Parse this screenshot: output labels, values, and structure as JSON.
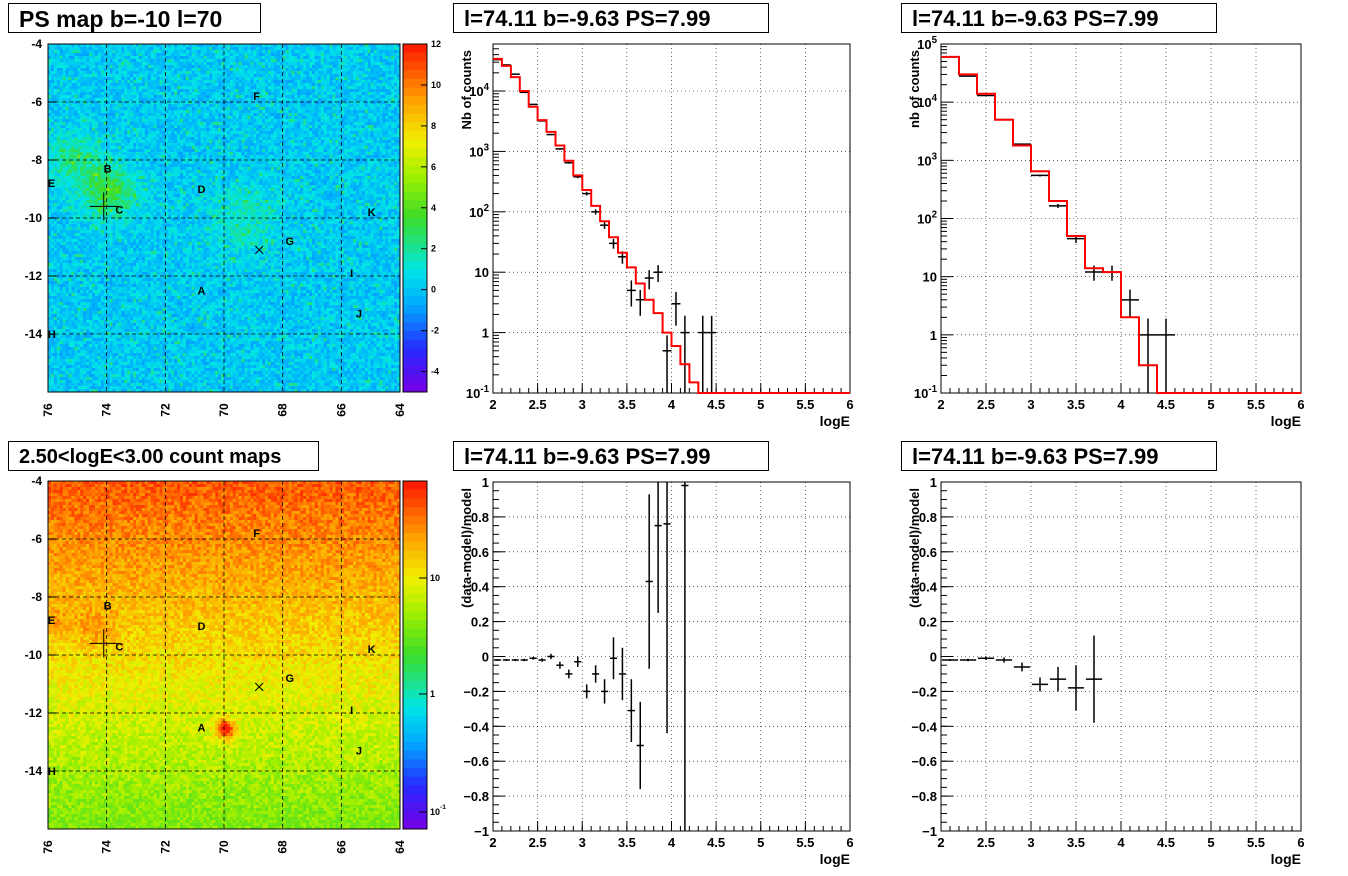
{
  "panels": {
    "p1_title": "PS map b=-10 l=70",
    "p2_title": "l=74.11 b=-9.63 PS=7.99",
    "p3_title": "l=74.11 b=-9.63 PS=7.99",
    "p4_title": "2.50<logE<3.00 count maps",
    "p5_title": "l=74.11 b=-9.63 PS=7.99",
    "p6_title": "l=74.11 b=-9.63 PS=7.99"
  },
  "colors": {
    "data": "#000000",
    "model": "#ff0000",
    "grid": "#000000"
  },
  "chart_data": [
    {
      "type": "heatmap",
      "title": "PS map b=-10 l=70",
      "xlim": [
        76,
        64
      ],
      "ylim": [
        -16,
        -4
      ],
      "xticks": [
        "76",
        "74",
        "72",
        "70",
        "68",
        "66",
        "64"
      ],
      "yticks": [
        "-4",
        "-6",
        "-8",
        "-10",
        "-12",
        "-14"
      ],
      "colorbar_ticks": [
        "12",
        "10",
        "8",
        "6",
        "4",
        "2",
        "0",
        "-2",
        "-4"
      ],
      "zlim": [
        -5,
        12
      ],
      "sources": [
        {
          "label": "A",
          "l": 70.8,
          "b": -12.5
        },
        {
          "label": "B",
          "l": 74.0,
          "b": -8.3
        },
        {
          "label": "C",
          "l": 73.6,
          "b": -9.7
        },
        {
          "label": "D",
          "l": 70.8,
          "b": -9.0
        },
        {
          "label": "E",
          "l": 75.9,
          "b": -8.8
        },
        {
          "label": "F",
          "l": 68.9,
          "b": -5.8
        },
        {
          "label": "G",
          "l": 67.8,
          "b": -10.8
        },
        {
          "label": "H",
          "l": 75.9,
          "b": -14.0
        },
        {
          "label": "I",
          "l": 65.6,
          "b": -11.9
        },
        {
          "label": "J",
          "l": 65.4,
          "b": -13.3
        },
        {
          "label": "K",
          "l": 65.0,
          "b": -9.8
        }
      ],
      "markers": [
        {
          "type": "plus",
          "l": 74.1,
          "b": -9.6
        },
        {
          "type": "x",
          "l": 68.8,
          "b": -11.1
        }
      ]
    },
    {
      "type": "line",
      "title": "l=74.11 b=-9.63 PS=7.99",
      "xlabel": "logE",
      "ylabel": "Nb of counts",
      "xlim": [
        2,
        6
      ],
      "ylim": [
        0.1,
        60000
      ],
      "yscale": "log",
      "grid": true,
      "xticks": [
        "2",
        "2.5",
        "3",
        "3.5",
        "4",
        "4.5",
        "5",
        "5.5",
        "6"
      ],
      "yticks": [
        "10^-1",
        "1",
        "10",
        "10^2",
        "10^3",
        "10^4"
      ],
      "series": [
        {
          "role": "model",
          "step_edges": [
            2,
            2.1,
            2.2,
            2.3,
            2.4,
            2.5,
            2.6,
            2.7,
            2.8,
            2.9,
            3.0,
            3.1,
            3.2,
            3.3,
            3.4,
            3.5,
            3.6,
            3.7,
            3.8,
            3.9,
            4.0,
            4.1,
            4.2,
            4.3,
            4.4,
            6.0
          ],
          "values": [
            34000,
            26000,
            17000,
            10000,
            5500,
            3300,
            2100,
            1250,
            700,
            400,
            230,
            125,
            70,
            38,
            21,
            12,
            6.5,
            3.5,
            2.1,
            1.0,
            0.6,
            0.3,
            0.15,
            0.1,
            0.1
          ]
        },
        {
          "role": "data",
          "x": [
            2.05,
            2.15,
            2.25,
            2.35,
            2.45,
            2.55,
            2.65,
            2.75,
            2.85,
            2.95,
            3.05,
            3.15,
            3.25,
            3.35,
            3.45,
            3.55,
            3.65,
            3.75,
            3.85,
            3.95,
            4.05,
            4.15,
            4.25,
            4.35,
            4.45
          ],
          "values": [
            33000,
            27000,
            19000,
            9500,
            6000,
            3200,
            1900,
            1100,
            650,
            380,
            200,
            100,
            60,
            30,
            18,
            5,
            3.5,
            8,
            10,
            0.5,
            3,
            1,
            0.1,
            1,
            1
          ],
          "yerr_lo": [
            180,
            160,
            130,
            95,
            77,
            56,
            43,
            33,
            25,
            19,
            14,
            10,
            7.7,
            5.5,
            4.2,
            2.3,
            1.6,
            2.8,
            3.1,
            0.4,
            1.7,
            0.9,
            0.05,
            0.9,
            0.9
          ],
          "yerr_hi": [
            180,
            160,
            130,
            95,
            77,
            56,
            43,
            33,
            25,
            19,
            14,
            10,
            7.7,
            5.5,
            4.2,
            2.3,
            1.6,
            2.8,
            3.1,
            0.4,
            1.7,
            0.9,
            0.05,
            0.9,
            0.9
          ]
        }
      ]
    },
    {
      "type": "line",
      "title": "l=74.11 b=-9.63 PS=7.99",
      "xlabel": "logE",
      "ylabel": "nb of counts",
      "xlim": [
        2,
        6
      ],
      "ylim": [
        0.1,
        100000
      ],
      "yscale": "log",
      "grid": true,
      "xticks": [
        "2",
        "2.5",
        "3",
        "3.5",
        "4",
        "4.5",
        "5",
        "5.5",
        "6"
      ],
      "yticks": [
        "10^-1",
        "1",
        "10",
        "10^2",
        "10^3",
        "10^4",
        "10^5"
      ],
      "series": [
        {
          "role": "model",
          "step_edges": [
            2,
            2.2,
            2.4,
            2.6,
            2.8,
            3.0,
            3.2,
            3.4,
            3.6,
            3.8,
            4.0,
            4.2,
            4.4,
            4.6,
            6.0
          ],
          "values": [
            60000,
            30000,
            14000,
            5000,
            1800,
            650,
            200,
            50,
            14,
            12,
            2,
            0.3,
            0.1,
            0.1
          ]
        },
        {
          "role": "data",
          "x": [
            2.1,
            2.3,
            2.5,
            2.7,
            2.9,
            3.1,
            3.3,
            3.5,
            3.7,
            3.9,
            4.1,
            4.3,
            4.5
          ],
          "values": [
            60000,
            28000,
            13000,
            5000,
            1900,
            550,
            165,
            45,
            12,
            12,
            4,
            1,
            1
          ],
          "yerr_lo": [
            240,
            170,
            110,
            70,
            44,
            23,
            13,
            7,
            3.5,
            3.5,
            2,
            0.9,
            0.9
          ],
          "yerr_hi": [
            240,
            170,
            110,
            70,
            44,
            23,
            13,
            7,
            3.5,
            3.5,
            2,
            0.9,
            0.9
          ]
        }
      ]
    },
    {
      "type": "heatmap",
      "title": "2.50<logE<3.00 count maps",
      "xlim": [
        76,
        64
      ],
      "ylim": [
        -16,
        -4
      ],
      "xticks": [
        "76",
        "74",
        "72",
        "70",
        "68",
        "66",
        "64"
      ],
      "yticks": [
        "-4",
        "-6",
        "-8",
        "-10",
        "-12",
        "-14"
      ],
      "colorbar_ticks": [
        "10",
        "1",
        "10^-1"
      ],
      "zscale": "log"
    },
    {
      "type": "scatter",
      "title": "l=74.11 b=-9.63 PS=7.99",
      "xlabel": "logE",
      "ylabel": "(data-model)/model",
      "xlim": [
        2,
        6
      ],
      "ylim": [
        -1,
        1
      ],
      "grid": true,
      "xticks": [
        "2",
        "2.5",
        "3",
        "3.5",
        "4",
        "4.5",
        "5",
        "5.5",
        "6"
      ],
      "yticks": [
        "-1",
        "-0.8",
        "-0.6",
        "-0.4",
        "-0.2",
        "0",
        "0.2",
        "0.4",
        "0.6",
        "0.8",
        "1"
      ],
      "series": [
        {
          "role": "data",
          "x": [
            2.05,
            2.15,
            2.25,
            2.35,
            2.45,
            2.55,
            2.65,
            2.75,
            2.85,
            2.95,
            3.05,
            3.15,
            3.25,
            3.35,
            3.45,
            3.55,
            3.65,
            3.75,
            3.85,
            3.95,
            4.15
          ],
          "values": [
            -0.02,
            -0.02,
            -0.02,
            -0.02,
            -0.01,
            -0.02,
            0.0,
            -0.05,
            -0.1,
            -0.03,
            -0.2,
            -0.1,
            -0.2,
            -0.01,
            -0.1,
            -0.31,
            -0.51,
            0.43,
            0.75,
            0.76,
            0.98
          ],
          "yerr": [
            0.005,
            0.005,
            0.006,
            0.007,
            0.008,
            0.01,
            0.015,
            0.02,
            0.025,
            0.03,
            0.04,
            0.05,
            0.07,
            0.12,
            0.15,
            0.18,
            0.25,
            0.5,
            0.5,
            1.2,
            2.0
          ]
        }
      ]
    },
    {
      "type": "scatter",
      "title": "l=74.11 b=-9.63 PS=7.99",
      "xlabel": "logE",
      "ylabel": "(data-model)/model",
      "xlim": [
        2,
        6
      ],
      "ylim": [
        -1,
        1
      ],
      "grid": true,
      "xticks": [
        "2",
        "2.5",
        "3",
        "3.5",
        "4",
        "4.5",
        "5",
        "5.5",
        "6"
      ],
      "yticks": [
        "-1",
        "-0.8",
        "-0.6",
        "-0.4",
        "-0.2",
        "0",
        "0.2",
        "0.4",
        "0.6",
        "0.8",
        "1"
      ],
      "series": [
        {
          "role": "data",
          "x": [
            2.1,
            2.3,
            2.5,
            2.7,
            2.9,
            3.1,
            3.3,
            3.5,
            3.7
          ],
          "values": [
            -0.02,
            -0.02,
            -0.01,
            -0.02,
            -0.06,
            -0.16,
            -0.13,
            -0.18,
            -0.13
          ],
          "yerr": [
            0.005,
            0.007,
            0.01,
            0.015,
            0.025,
            0.04,
            0.07,
            0.13,
            0.25
          ]
        }
      ]
    }
  ]
}
